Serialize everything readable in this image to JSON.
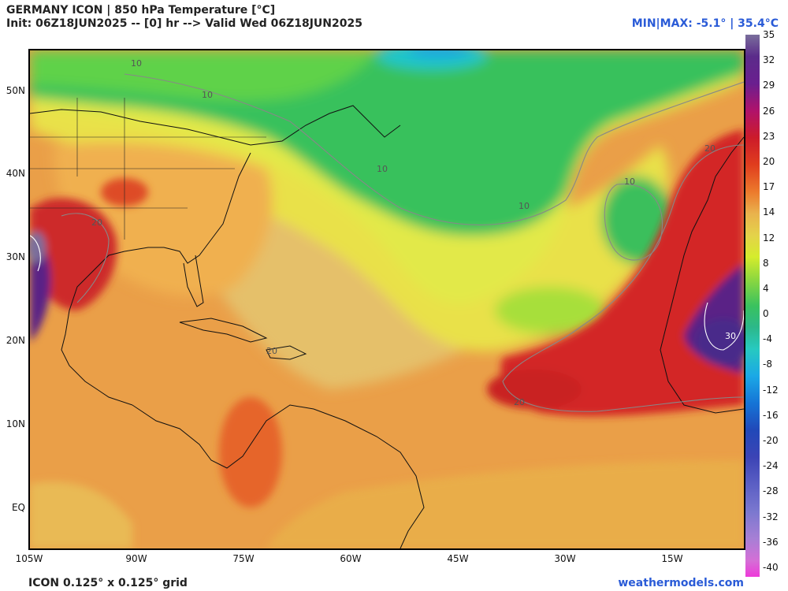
{
  "header": {
    "title_line1": "GERMANY ICON | 850 hPa Temperature [°C]",
    "title_line2": "Init: 06Z18JUN2025 -- [0] hr --> Valid Wed 06Z18JUN2025",
    "minmax": "MIN|MAX: -5.1° | 35.4°C"
  },
  "map": {
    "lat_labels": [
      "50N",
      "40N",
      "30N",
      "20N",
      "10N",
      "EQ"
    ],
    "lon_labels": [
      "105W",
      "90W",
      "75W",
      "60W",
      "45W",
      "30W",
      "15W"
    ],
    "contour_labels": [
      "10",
      "10",
      "10",
      "10",
      "10",
      "20",
      "20",
      "20",
      "20",
      "30"
    ]
  },
  "colorbar": {
    "ticks": [
      "35",
      "32",
      "29",
      "26",
      "23",
      "20",
      "17",
      "14",
      "12",
      "8",
      "4",
      "0",
      "-4",
      "-8",
      "-12",
      "-16",
      "-20",
      "-24",
      "-28",
      "-32",
      "-36",
      "-40"
    ],
    "colors": [
      "#7a6e9c",
      "#5b2b8a",
      "#6a1f8f",
      "#b0126b",
      "#cc1b2a",
      "#e03d1e",
      "#ec7a2c",
      "#e9b24d",
      "#e4d24a",
      "#d5ec2c",
      "#8fd83e",
      "#3ac25e",
      "#2cb88a",
      "#27c9c0",
      "#1ba8e6",
      "#1574d6",
      "#2148b8",
      "#3c44b5",
      "#5b5fc4",
      "#7b78cf",
      "#a77fd5",
      "#d46fd6",
      "#ee39d9"
    ]
  },
  "footer": {
    "left": "ICON 0.125° x 0.125° grid",
    "right": "weathermodels.com"
  }
}
